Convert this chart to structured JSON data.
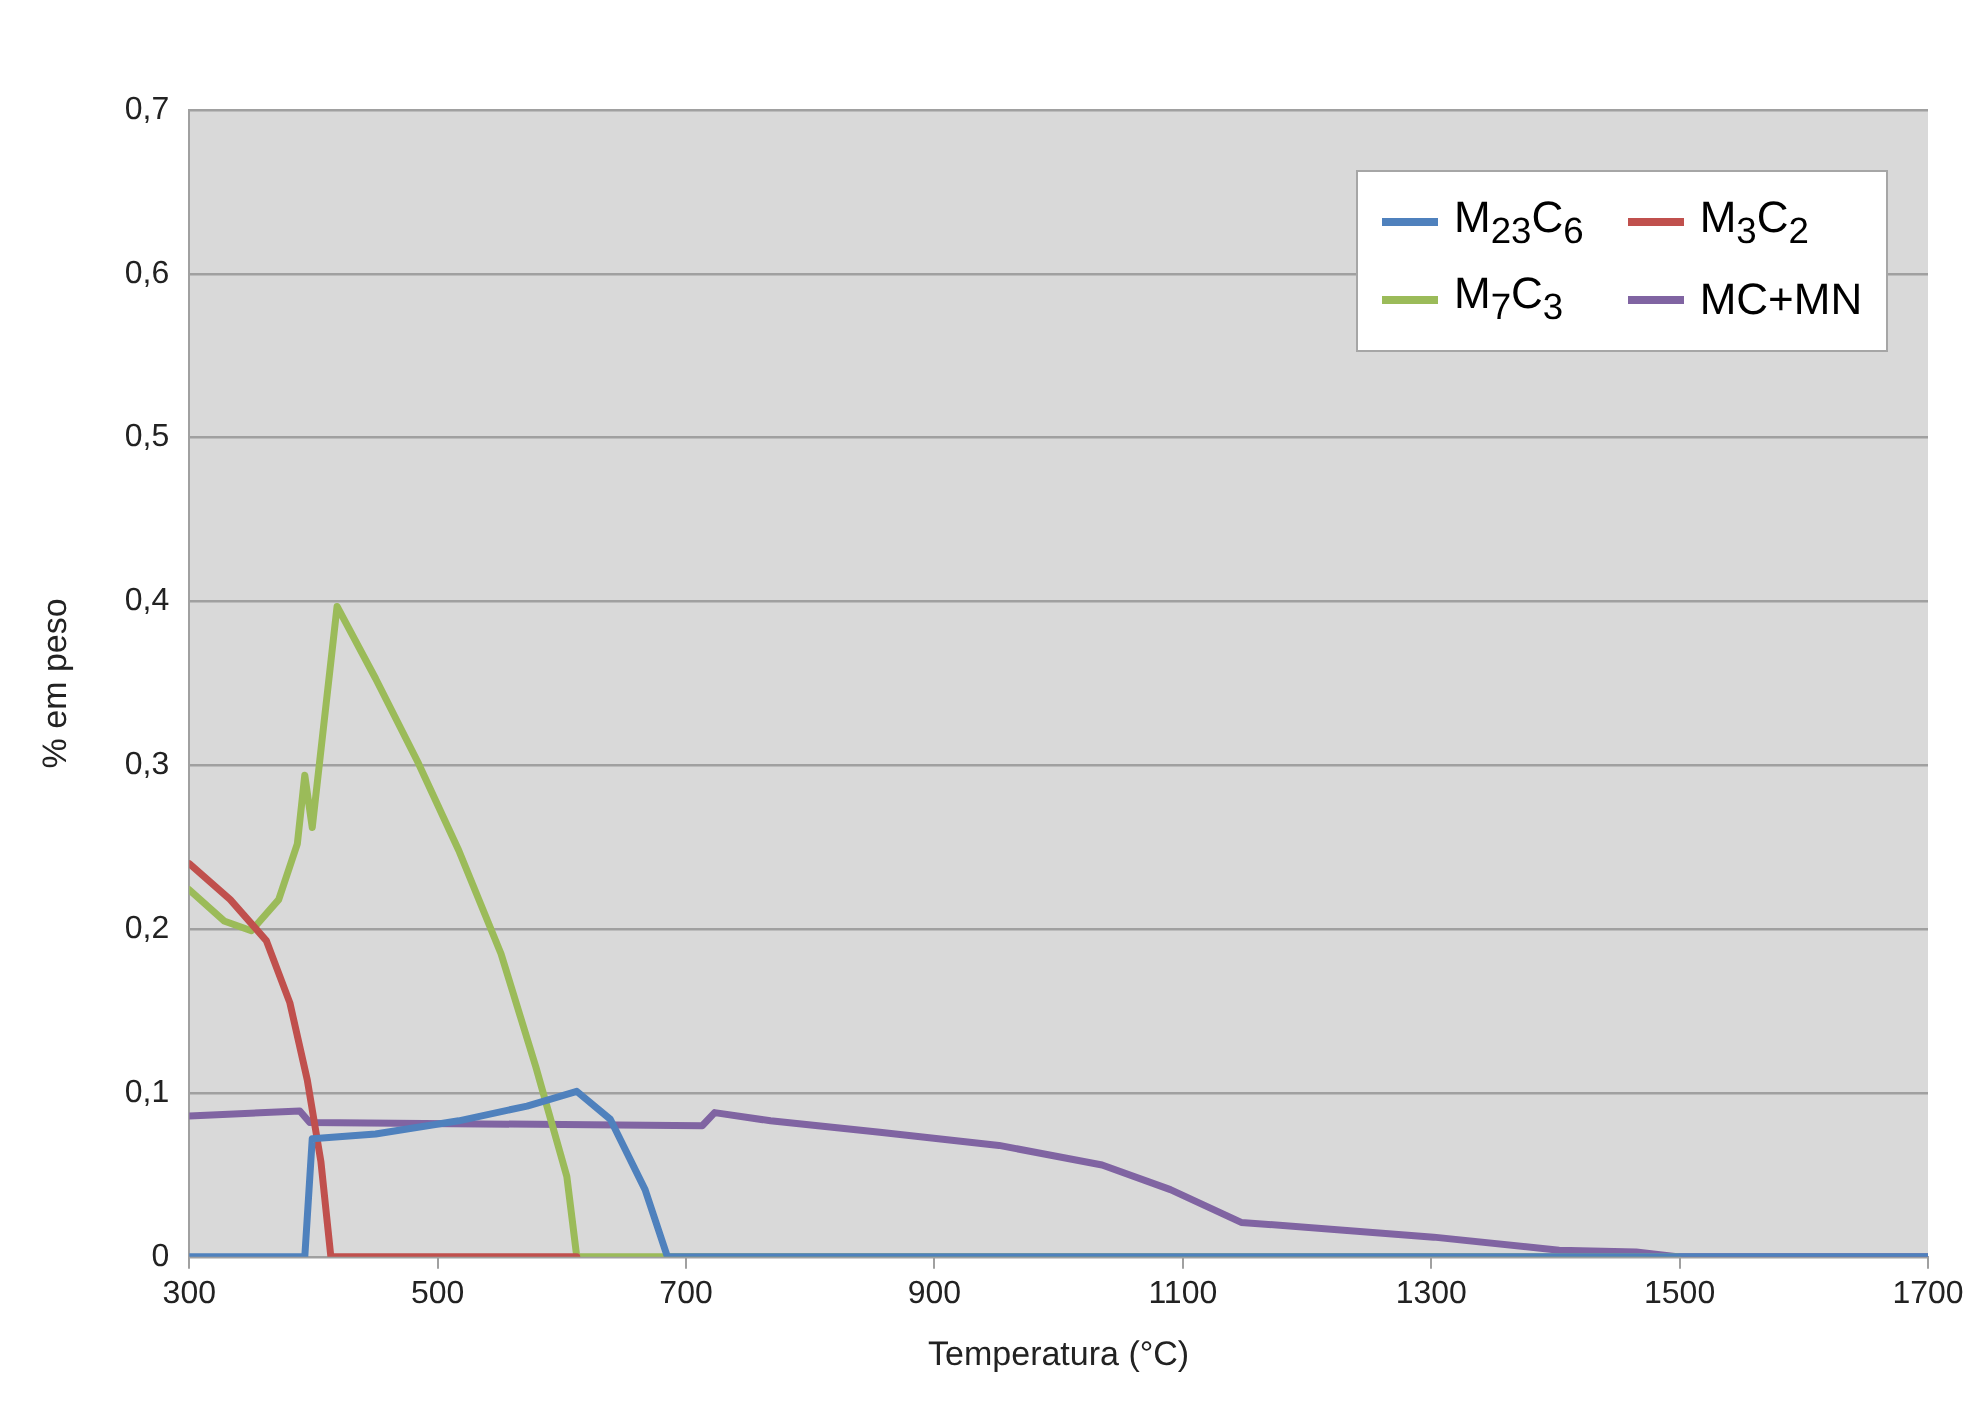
{
  "chart_data": {
    "type": "line",
    "xlabel": "Temperatura (°C)",
    "ylabel": "% em peso",
    "xlim": [
      300,
      1700
    ],
    "xticks": [
      300,
      500,
      700,
      900,
      1100,
      1300,
      1500,
      1700
    ],
    "ylim": [
      0,
      0.7
    ],
    "yticks": [
      0,
      {
        "value": 0.1,
        "label": "0,1"
      },
      {
        "value": 0.2,
        "label": "0,2"
      },
      {
        "value": 0.3,
        "label": "0,3"
      },
      {
        "value": 0.4,
        "label": "0,4"
      },
      {
        "value": 0.5,
        "label": "0,5"
      },
      {
        "value": 0.6,
        "label": "0,6"
      },
      {
        "value": 0.7,
        "label": "0,7"
      }
    ],
    "grid": "y",
    "legend": "top right",
    "marker": "none",
    "line_style": "solid",
    "series": [
      {
        "name": "M$_{23}$C$_{6}$",
        "color": "#4f81bd",
        "x": [
          300,
          393,
          399,
          450,
          517,
          572,
          612,
          639,
          667,
          685,
          1700
        ],
        "values": [
          0,
          0,
          0.072,
          0.075,
          0.083,
          0.092,
          0.101,
          0.084,
          0.041,
          0,
          0
        ]
      },
      {
        "name": "M$_{3}$C$_{2}$",
        "color": "#c0504d",
        "x": [
          300,
          333,
          362,
          381,
          395,
          406,
          414,
          612
        ],
        "values": [
          0.24,
          0.218,
          0.193,
          0.155,
          0.108,
          0.058,
          0,
          0
        ]
      },
      {
        "name": "M$_{7}$C$_{3}$",
        "color": "#9bbb59",
        "x": [
          300,
          328,
          350,
          372,
          387,
          393,
          399,
          419,
          450,
          484,
          517,
          551,
          579,
          604,
          612,
          1498
        ],
        "values": [
          0.224,
          0.205,
          0.199,
          0.218,
          0.252,
          0.294,
          0.262,
          0.397,
          0.353,
          0.302,
          0.248,
          0.185,
          0.116,
          0.049,
          0,
          0
        ]
      },
      {
        "name": "MC+MN",
        "color": "#8064a2",
        "x": [
          300,
          389,
          397,
          713,
          723,
          768,
          856,
          952,
          1035,
          1090,
          1147,
          1302,
          1403,
          1465,
          1498,
          1700
        ],
        "values": [
          0.086,
          0.089,
          0.082,
          0.08,
          0.088,
          0.083,
          0.076,
          0.068,
          0.056,
          0.041,
          0.021,
          0.012,
          0.004,
          0.003,
          0,
          0
        ]
      }
    ]
  }
}
